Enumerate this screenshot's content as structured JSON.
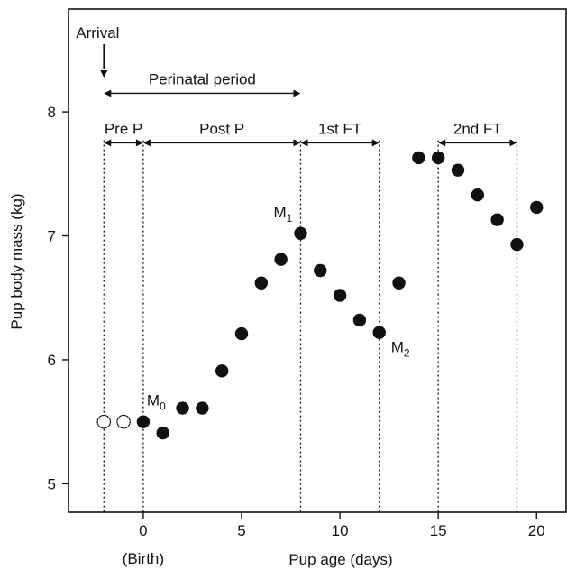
{
  "chart_data": {
    "type": "scatter",
    "xlabel": "Pup age (days)",
    "ylabel": "Pup body mass (kg)",
    "xlim": [
      -3.8,
      21.5
    ],
    "ylim": [
      4.77,
      8.83
    ],
    "x_ticks": [
      0,
      5,
      10,
      15,
      20
    ],
    "x_tick_labels": [
      "0",
      "5",
      "10",
      "15",
      "20"
    ],
    "x_tick_sublabels": [
      "(Birth)"
    ],
    "y_ticks": [
      5,
      6,
      7,
      8
    ],
    "y_tick_labels": [
      "5",
      "6",
      "7",
      "8"
    ],
    "grid": false,
    "series": [
      {
        "marker": "open-circle",
        "points": [
          {
            "x": -2,
            "y": 5.5
          },
          {
            "x": -1,
            "y": 5.5
          }
        ]
      },
      {
        "marker": "filled-circle",
        "points": [
          {
            "x": 0,
            "y": 5.5
          },
          {
            "x": 1,
            "y": 5.41
          },
          {
            "x": 2,
            "y": 5.61
          },
          {
            "x": 3,
            "y": 5.61
          },
          {
            "x": 4,
            "y": 5.91
          },
          {
            "x": 5,
            "y": 6.21
          },
          {
            "x": 6,
            "y": 6.62
          },
          {
            "x": 7,
            "y": 6.81
          },
          {
            "x": 8,
            "y": 7.02
          },
          {
            "x": 9,
            "y": 6.72
          },
          {
            "x": 10,
            "y": 6.52
          },
          {
            "x": 11,
            "y": 6.32
          },
          {
            "x": 12,
            "y": 6.22
          },
          {
            "x": 13,
            "y": 6.62
          },
          {
            "x": 14,
            "y": 7.63
          },
          {
            "x": 15,
            "y": 7.63
          },
          {
            "x": 16,
            "y": 7.53
          },
          {
            "x": 17,
            "y": 7.33
          },
          {
            "x": 18,
            "y": 7.13
          },
          {
            "x": 19,
            "y": 6.93
          },
          {
            "x": 20,
            "y": 7.23
          }
        ]
      }
    ],
    "reference_lines": [
      -2,
      0,
      8,
      12,
      15,
      19
    ],
    "arrival": {
      "label": "Arrival",
      "x": -2
    },
    "periods": [
      {
        "label": "Perinatal period",
        "x0": -2,
        "x1": 8,
        "y": 8.15
      },
      {
        "label": "Pre P",
        "x0": -2,
        "x1": 0,
        "y": 7.75
      },
      {
        "label": "Post P",
        "x0": 0,
        "x1": 8,
        "y": 7.75
      },
      {
        "label": "1st FT",
        "x0": 8,
        "x1": 12,
        "y": 7.75
      },
      {
        "label": "2nd FT",
        "x0": 15,
        "x1": 19,
        "y": 7.75
      }
    ],
    "annotations": [
      {
        "base": "M",
        "sub": "0",
        "x": 0,
        "y": 5.5
      },
      {
        "base": "M",
        "sub": "1",
        "x": 8,
        "y": 7.02
      },
      {
        "base": "M",
        "sub": "2",
        "x": 12,
        "y": 6.22
      }
    ]
  }
}
